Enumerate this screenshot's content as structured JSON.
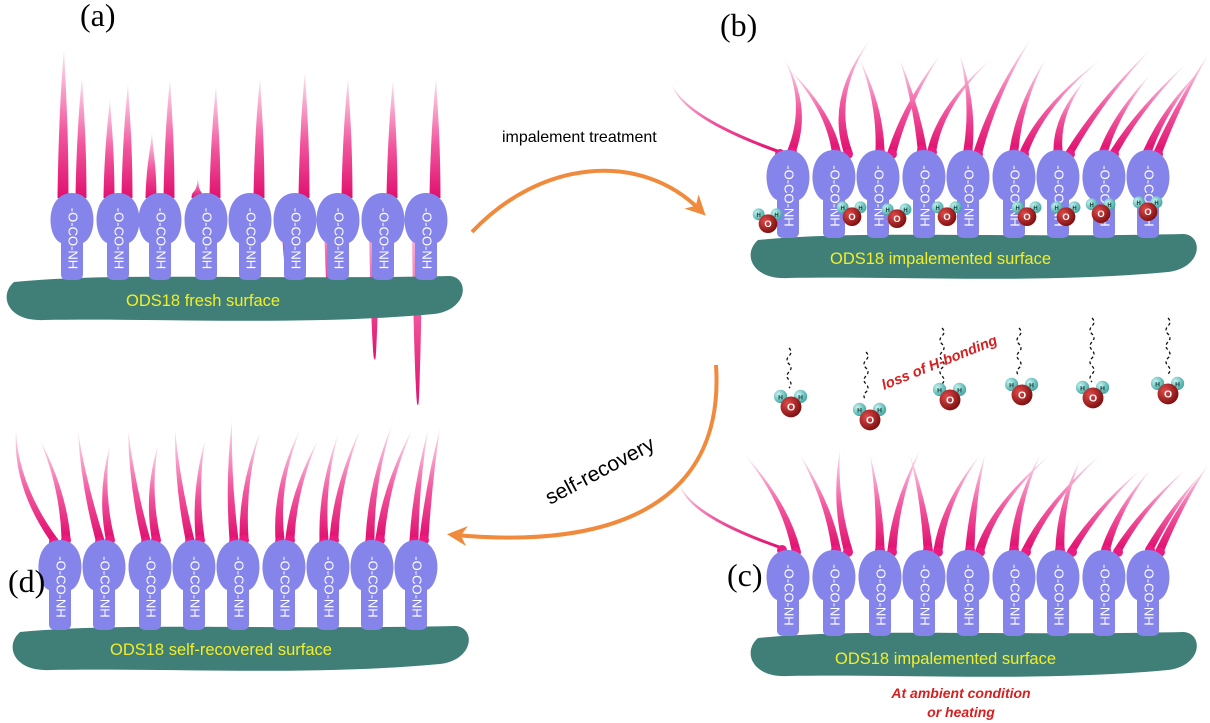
{
  "panels": {
    "a": {
      "letter": "(a)",
      "surface_label": "ODS18 fresh surface"
    },
    "b": {
      "letter": "(b)",
      "surface_label": "ODS18 impalemented surface"
    },
    "c": {
      "letter": "(c)",
      "surface_label": "ODS18 impalemented surface",
      "note_line1": "At ambient condition",
      "note_line2": "or heating"
    },
    "d": {
      "letter": "(d)",
      "surface_label": "ODS18 self-recovered surface"
    }
  },
  "arrows": {
    "top_label": "impalement treatment",
    "right_label": "self-recovery"
  },
  "annotations": {
    "loss_label": "loss of H-bonding"
  },
  "molecule": {
    "group_label": "-O-CO-NH",
    "oxygen_symbol": "O",
    "hydrogen_symbol": "H"
  },
  "colors": {
    "substrate": "#3f7f77",
    "headgroup": "#8584ea",
    "chain": "#ec1b80",
    "chain_light": "#fbd3e5",
    "arrow": "#f08a3c",
    "oxygen": "#a51717",
    "hydrogen": "#63c9c4",
    "surface_text": "#f3ee2a",
    "note": "#d81f1f"
  }
}
